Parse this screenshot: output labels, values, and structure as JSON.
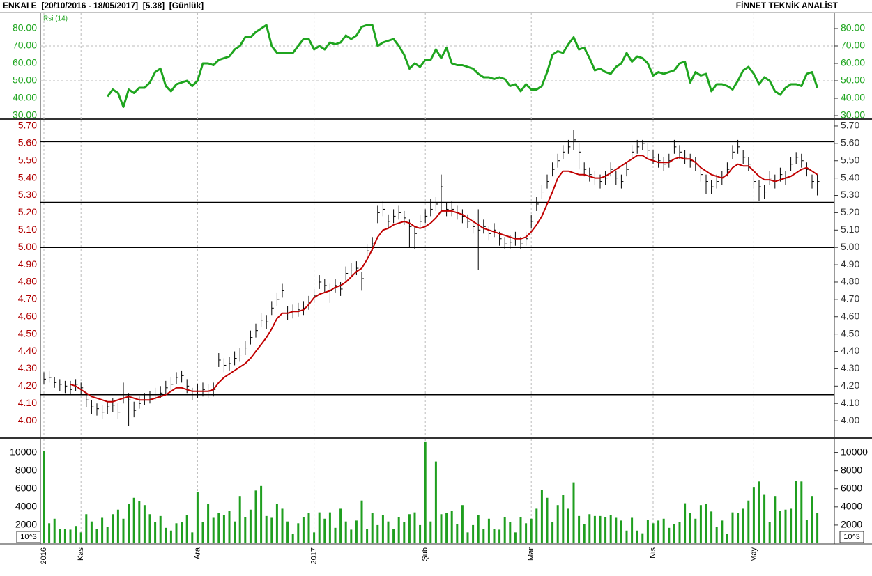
{
  "header": {
    "title": "ENKAI E  [20/10/2016 - 18/05/2017]  [5.38]  [Günlük]",
    "brand": "FİNNET TEKNİK ANALİST"
  },
  "chart_data": [
    {
      "type": "line",
      "label": "Rsi (14)",
      "color": "#1fa51f",
      "xlim": [
        0,
        146
      ],
      "ylim": [
        28,
        89.2
      ],
      "yticks": [
        {
          "value": 80,
          "label": "80.00"
        },
        {
          "value": 70,
          "label": "70.00"
        },
        {
          "value": 60,
          "label": "60.00"
        },
        {
          "value": 50,
          "label": "50.00"
        },
        {
          "value": 40,
          "label": "40.00"
        },
        {
          "value": 30,
          "label": "30.00"
        }
      ],
      "ygrid": [
        70,
        50
      ],
      "values": [
        null,
        null,
        null,
        null,
        null,
        null,
        null,
        null,
        null,
        null,
        null,
        null,
        41,
        45,
        43,
        35,
        45,
        43,
        46,
        46,
        49,
        55,
        57,
        47,
        44,
        48,
        49,
        50,
        47,
        50,
        60,
        60,
        59,
        62,
        63,
        64,
        68,
        70,
        75,
        75,
        78,
        80,
        82,
        70,
        66,
        66,
        66,
        66,
        70,
        74,
        74,
        68,
        70,
        68,
        72,
        71,
        72,
        76,
        74,
        76,
        81,
        82,
        82,
        70,
        72,
        73,
        74,
        70,
        65,
        57,
        60,
        58,
        62,
        62,
        68,
        63,
        69,
        60,
        59,
        59,
        58,
        57,
        54,
        52,
        52,
        51,
        52,
        51,
        47,
        48,
        44,
        48,
        45,
        45,
        47,
        55,
        65,
        67,
        66,
        71,
        75,
        68,
        69,
        63,
        56,
        57,
        55,
        54,
        58,
        60,
        66,
        61,
        64,
        63,
        60,
        53,
        55,
        54,
        55,
        56,
        60,
        61,
        49,
        55,
        53,
        54,
        44,
        48,
        48,
        47,
        45,
        50,
        56,
        58,
        54,
        48,
        52,
        50,
        44,
        42,
        46,
        48,
        48,
        47,
        54,
        55,
        46
      ]
    },
    {
      "type": "ohlc",
      "color": "#000000",
      "xlim": [
        0,
        146
      ],
      "ylim": [
        3.904,
        5.736
      ],
      "yticks": [
        {
          "value": 5.7,
          "label": "5.70"
        },
        {
          "value": 5.6,
          "label": "5.60"
        },
        {
          "value": 5.5,
          "label": "5.50"
        },
        {
          "value": 5.4,
          "label": "5.40"
        },
        {
          "value": 5.3,
          "label": "5.30"
        },
        {
          "value": 5.2,
          "label": "5.20"
        },
        {
          "value": 5.1,
          "label": "5.10"
        },
        {
          "value": 5.0,
          "label": "5.00"
        },
        {
          "value": 4.9,
          "label": "4.90"
        },
        {
          "value": 4.8,
          "label": "4.80"
        },
        {
          "value": 4.7,
          "label": "4.70"
        },
        {
          "value": 4.6,
          "label": "4.60"
        },
        {
          "value": 4.5,
          "label": "4.50"
        },
        {
          "value": 4.4,
          "label": "4.40"
        },
        {
          "value": 4.3,
          "label": "4.30"
        },
        {
          "value": 4.2,
          "label": "4.20"
        },
        {
          "value": 4.1,
          "label": "4.10"
        },
        {
          "value": 4.0,
          "label": "4.00"
        }
      ],
      "hlines": [
        5.61,
        5.26,
        5.0,
        4.15
      ],
      "close": [
        4.24,
        4.25,
        4.22,
        4.21,
        4.2,
        4.18,
        4.21,
        4.19,
        4.12,
        4.08,
        4.07,
        4.05,
        4.08,
        4.09,
        4.05,
        4.15,
        4.12,
        4.06,
        4.1,
        4.12,
        4.13,
        4.15,
        4.16,
        4.19,
        4.21,
        4.25,
        4.26,
        4.2,
        4.15,
        4.17,
        4.18,
        4.17,
        4.18,
        4.35,
        4.32,
        4.33,
        4.36,
        4.38,
        4.42,
        4.48,
        4.52,
        4.58,
        4.57,
        4.65,
        4.7,
        4.75,
        4.62,
        4.63,
        4.64,
        4.65,
        4.68,
        4.72,
        4.8,
        4.78,
        4.75,
        4.78,
        4.76,
        4.85,
        4.87,
        4.88,
        4.82,
        4.98,
        5.02,
        5.2,
        5.22,
        5.15,
        5.18,
        5.2,
        5.17,
        5.12,
        5.08,
        5.15,
        5.18,
        5.22,
        5.25,
        5.35,
        5.22,
        5.22,
        5.2,
        5.18,
        5.15,
        5.12,
        5.1,
        5.12,
        5.08,
        5.1,
        5.05,
        5.02,
        5.03,
        5.05,
        5.02,
        5.05,
        5.15,
        5.25,
        5.32,
        5.38,
        5.45,
        5.5,
        5.55,
        5.58,
        5.62,
        5.55,
        5.45,
        5.42,
        5.4,
        5.38,
        5.4,
        5.45,
        5.4,
        5.38,
        5.45,
        5.55,
        5.58,
        5.6,
        5.56,
        5.52,
        5.5,
        5.48,
        5.5,
        5.58,
        5.55,
        5.52,
        5.5,
        5.48,
        5.42,
        5.38,
        5.35,
        5.38,
        5.4,
        5.45,
        5.55,
        5.58,
        5.52,
        5.48,
        5.38,
        5.35,
        5.32,
        5.4,
        5.38,
        5.42,
        5.4,
        5.48,
        5.52,
        5.5,
        5.45,
        5.38,
        5.38
      ],
      "high": [
        4.28,
        4.29,
        4.25,
        4.24,
        4.23,
        4.23,
        4.24,
        4.22,
        4.16,
        4.12,
        4.1,
        4.09,
        4.11,
        4.13,
        4.1,
        4.22,
        4.16,
        4.11,
        4.14,
        4.16,
        4.17,
        4.19,
        4.2,
        4.23,
        4.25,
        4.28,
        4.29,
        4.24,
        4.19,
        4.21,
        4.22,
        4.21,
        4.22,
        4.39,
        4.36,
        4.37,
        4.4,
        4.42,
        4.46,
        4.52,
        4.56,
        4.62,
        4.61,
        4.69,
        4.74,
        4.79,
        4.66,
        4.67,
        4.68,
        4.69,
        4.72,
        4.76,
        4.84,
        4.82,
        4.79,
        4.82,
        4.8,
        4.89,
        4.91,
        4.92,
        4.86,
        5.02,
        5.06,
        5.24,
        5.27,
        5.19,
        5.22,
        5.24,
        5.21,
        5.16,
        5.12,
        5.19,
        5.22,
        5.28,
        5.29,
        5.42,
        5.26,
        5.27,
        5.24,
        5.22,
        5.19,
        5.16,
        5.22,
        5.16,
        5.12,
        5.14,
        5.09,
        5.06,
        5.07,
        5.09,
        5.06,
        5.09,
        5.19,
        5.29,
        5.36,
        5.42,
        5.49,
        5.54,
        5.59,
        5.62,
        5.68,
        5.6,
        5.49,
        5.46,
        5.44,
        5.42,
        5.44,
        5.49,
        5.44,
        5.42,
        5.49,
        5.59,
        5.62,
        5.62,
        5.6,
        5.56,
        5.54,
        5.52,
        5.54,
        5.62,
        5.59,
        5.56,
        5.54,
        5.52,
        5.46,
        5.42,
        5.39,
        5.42,
        5.44,
        5.49,
        5.59,
        5.62,
        5.56,
        5.52,
        5.42,
        5.39,
        5.36,
        5.44,
        5.42,
        5.46,
        5.44,
        5.52,
        5.55,
        5.54,
        5.49,
        5.42,
        5.42
      ],
      "low": [
        4.21,
        4.22,
        4.19,
        4.17,
        4.16,
        4.15,
        4.17,
        4.15,
        4.08,
        4.04,
        4.03,
        4.01,
        4.04,
        4.05,
        4.01,
        4.1,
        3.97,
        4.02,
        4.07,
        4.09,
        4.1,
        4.12,
        4.13,
        4.15,
        4.17,
        4.21,
        4.22,
        4.16,
        4.12,
        4.13,
        4.14,
        4.13,
        4.14,
        4.31,
        4.28,
        4.29,
        4.32,
        4.34,
        4.38,
        4.44,
        4.48,
        4.54,
        4.53,
        4.61,
        4.66,
        4.71,
        4.58,
        4.59,
        4.6,
        4.61,
        4.64,
        4.68,
        4.76,
        4.74,
        4.68,
        4.74,
        4.72,
        4.81,
        4.83,
        4.84,
        4.75,
        4.94,
        4.98,
        5.14,
        5.18,
        5.11,
        5.14,
        5.16,
        5.13,
        5.0,
        4.99,
        5.11,
        5.14,
        5.18,
        5.21,
        5.2,
        5.18,
        5.18,
        5.16,
        5.14,
        5.11,
        5.08,
        4.87,
        5.08,
        5.04,
        5.06,
        5.01,
        4.99,
        4.99,
        5.01,
        4.99,
        5.01,
        5.11,
        5.21,
        5.28,
        5.34,
        5.41,
        5.46,
        5.51,
        5.54,
        5.56,
        5.45,
        5.41,
        5.38,
        5.36,
        5.34,
        5.36,
        5.41,
        5.36,
        5.34,
        5.41,
        5.51,
        5.54,
        5.56,
        5.52,
        5.48,
        5.46,
        5.44,
        5.46,
        5.54,
        5.51,
        5.48,
        5.46,
        5.44,
        5.38,
        5.31,
        5.31,
        5.34,
        5.36,
        5.41,
        5.51,
        5.54,
        5.48,
        5.44,
        5.34,
        5.27,
        5.28,
        5.36,
        5.34,
        5.38,
        5.36,
        5.44,
        5.48,
        5.46,
        5.41,
        5.34,
        5.3
      ],
      "ma_color": "#c00000",
      "ma": [
        null,
        null,
        null,
        null,
        null,
        4.21,
        4.2,
        4.18,
        4.16,
        4.14,
        4.13,
        4.12,
        4.11,
        4.11,
        4.12,
        4.13,
        4.14,
        4.13,
        4.12,
        4.12,
        4.12,
        4.13,
        4.14,
        4.15,
        4.17,
        4.19,
        4.19,
        4.18,
        4.17,
        4.17,
        4.17,
        4.17,
        4.18,
        4.22,
        4.25,
        4.27,
        4.29,
        4.31,
        4.33,
        4.36,
        4.4,
        4.44,
        4.48,
        4.53,
        4.59,
        4.62,
        4.62,
        4.63,
        4.63,
        4.64,
        4.67,
        4.71,
        4.73,
        4.74,
        4.75,
        4.77,
        4.78,
        4.8,
        4.83,
        4.86,
        4.88,
        4.93,
        4.99,
        5.06,
        5.1,
        5.11,
        5.13,
        5.14,
        5.15,
        5.14,
        5.12,
        5.11,
        5.12,
        5.14,
        5.17,
        5.21,
        5.21,
        5.21,
        5.2,
        5.19,
        5.17,
        5.15,
        5.13,
        5.11,
        5.1,
        5.09,
        5.08,
        5.07,
        5.06,
        5.05,
        5.05,
        5.06,
        5.09,
        5.13,
        5.18,
        5.25,
        5.32,
        5.4,
        5.44,
        5.44,
        5.43,
        5.42,
        5.42,
        5.41,
        5.4,
        5.4,
        5.41,
        5.43,
        5.45,
        5.47,
        5.49,
        5.51,
        5.53,
        5.53,
        5.51,
        5.5,
        5.49,
        5.49,
        5.49,
        5.51,
        5.52,
        5.51,
        5.51,
        5.49,
        5.46,
        5.44,
        5.42,
        5.41,
        5.4,
        5.42,
        5.46,
        5.48,
        5.47,
        5.47,
        5.44,
        5.41,
        5.39,
        5.39,
        5.38,
        5.39,
        5.4,
        5.41,
        5.43,
        5.45,
        5.46,
        5.44,
        5.42
      ]
    },
    {
      "type": "bar",
      "color": "#1f9e1f",
      "unit_label": "10^3",
      "xlim": [
        0,
        146
      ],
      "ylim": [
        0,
        11500
      ],
      "yticks": [
        10000,
        8000,
        6000,
        4000,
        2000
      ],
      "xticks": [
        {
          "value": 0,
          "label": "2016"
        },
        {
          "value": 7,
          "label": "Kas"
        },
        {
          "value": 29,
          "label": "Ara"
        },
        {
          "value": 51,
          "label": "2017"
        },
        {
          "value": 72,
          "label": "Şub"
        },
        {
          "value": 92,
          "label": "Mar"
        },
        {
          "value": 115,
          "label": "Nis"
        },
        {
          "value": 134,
          "label": "May"
        }
      ],
      "values": [
        10200,
        2200,
        2700,
        1600,
        1600,
        1500,
        1900,
        1200,
        3200,
        2400,
        1600,
        2800,
        1800,
        3200,
        3700,
        2700,
        4300,
        5000,
        4600,
        4200,
        3200,
        2300,
        3000,
        1700,
        1400,
        2200,
        2300,
        3100,
        1200,
        5600,
        2300,
        4300,
        2800,
        3300,
        3100,
        3600,
        2400,
        5200,
        2900,
        3700,
        5800,
        6300,
        3000,
        2800,
        4300,
        3800,
        2400,
        1000,
        2200,
        2900,
        3300,
        1200,
        3400,
        2700,
        3400,
        1700,
        3800,
        2400,
        1500,
        2500,
        4700,
        1600,
        3300,
        2000,
        3100,
        2400,
        1600,
        2900,
        2300,
        3200,
        3400,
        2000,
        11200,
        2400,
        9000,
        3200,
        3300,
        3600,
        2100,
        4200,
        1200,
        2000,
        3100,
        1600,
        2700,
        1600,
        1500,
        2900,
        2300,
        1200,
        2900,
        2200,
        2700,
        3800,
        5900,
        5000,
        2300,
        4200,
        5300,
        3800,
        6700,
        3000,
        2100,
        3200,
        3000,
        3000,
        2900,
        3100,
        2800,
        2500,
        1400,
        2800,
        1400,
        1100,
        2600,
        2200,
        2500,
        2700,
        1700,
        2100,
        2300,
        4400,
        3300,
        2700,
        4200,
        4300,
        3500,
        1800,
        2500,
        1000,
        3400,
        3300,
        3800,
        4700,
        6200,
        6800,
        5400,
        2300,
        5200,
        3600,
        3700,
        3800,
        6900,
        6800,
        2600,
        5200,
        3300
      ]
    }
  ]
}
